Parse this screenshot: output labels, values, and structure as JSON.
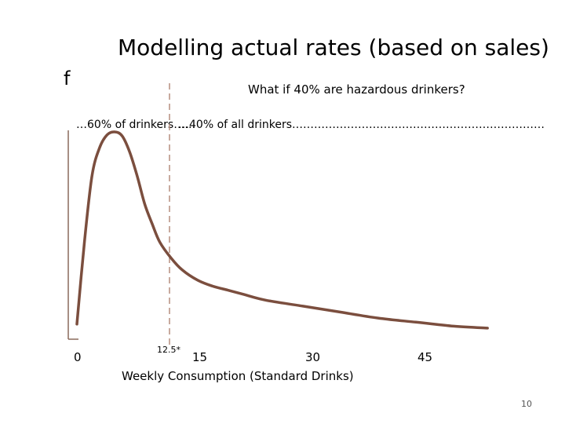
{
  "slide": {
    "title": "Modelling actual rates (based on sales)",
    "page_number": "10"
  },
  "chart_data": {
    "type": "line",
    "title": "Modelling actual rates (based on sales)",
    "subtitle": "What if 40% are hazardous drinkers?",
    "ylabel": "f",
    "xlabel": "Weekly Consumption (Standard Drinks)",
    "xlim": [
      0,
      55
    ],
    "ylim": [
      0,
      1
    ],
    "grid": false,
    "series": [
      {
        "x": [
          0,
          1,
          2,
          3,
          4,
          5,
          6,
          7,
          8,
          9,
          10,
          11,
          12.5,
          14,
          16,
          18,
          20,
          22,
          25,
          30,
          35,
          40,
          45,
          50,
          54.5
        ],
        "y": [
          0.04,
          0.45,
          0.78,
          0.92,
          0.985,
          1.0,
          0.98,
          0.9,
          0.78,
          0.64,
          0.54,
          0.45,
          0.37,
          0.31,
          0.26,
          0.23,
          0.21,
          0.19,
          0.16,
          0.13,
          0.1,
          0.07,
          0.05,
          0.03,
          0.02
        ]
      }
    ],
    "threshold": {
      "x": 12.5,
      "label": "12.5*"
    },
    "x_ticks": [
      {
        "value": 0,
        "label": "0"
      },
      {
        "value": 15,
        "label": "15"
      },
      {
        "value": 30,
        "label": "30"
      },
      {
        "value": 45,
        "label": "45"
      }
    ],
    "annotations": {
      "left": "…60% of drinkers……",
      "right": "…40% of all drinkers……………………………………………………………"
    },
    "colors": {
      "curve": "#7b4e3e",
      "axis": "#8a6a5c",
      "dashed": "#b58d7e"
    }
  }
}
